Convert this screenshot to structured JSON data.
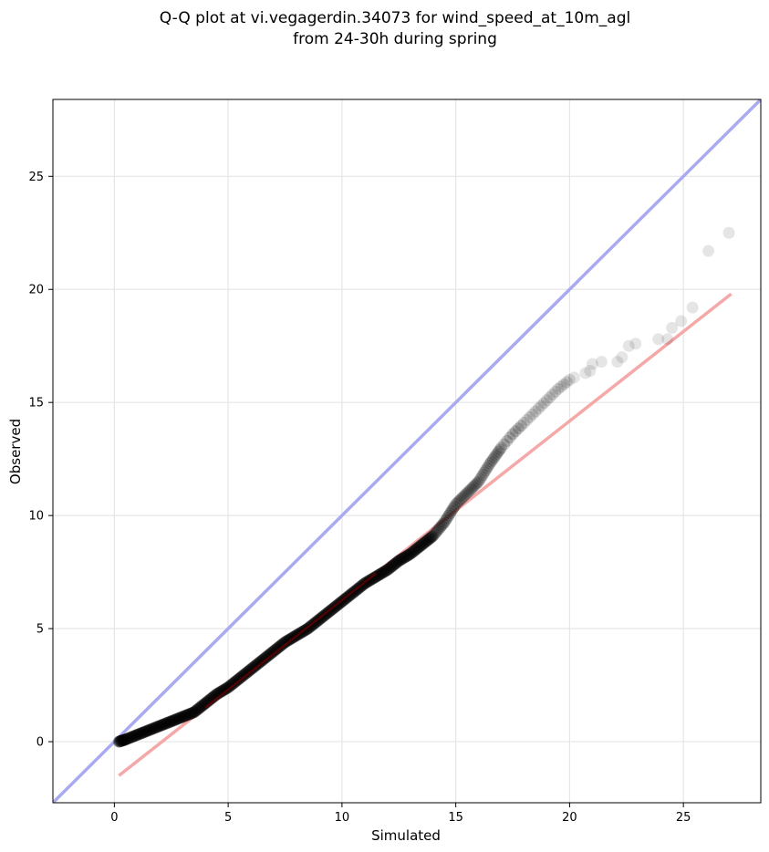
{
  "chart_data": {
    "type": "scatter",
    "title_line1": "Q-Q plot at vi.vegagerdin.34073 for wind_speed_at_10m_agl",
    "title_line2": "from 24-30h during spring",
    "xlabel": "Simulated",
    "ylabel": "Observed",
    "xlim": [
      -2.7,
      28.4
    ],
    "ylim": [
      -2.7,
      28.4
    ],
    "xticks": [
      0,
      5,
      10,
      15,
      20,
      25
    ],
    "yticks": [
      0,
      5,
      10,
      15,
      20,
      25
    ],
    "grid": true,
    "colors": {
      "points": "#000000",
      "identity_line": "#aaaaf0",
      "fit_line": "#f5a8a8",
      "dense_fit_line": "#8b0000"
    },
    "identity_line": {
      "from": [
        -2.7,
        -2.7
      ],
      "to": [
        28.4,
        28.4
      ]
    },
    "fit_line": {
      "from": [
        0.2,
        -1.5
      ],
      "to": [
        27.1,
        19.8
      ]
    },
    "quantile_curve": [
      [
        0.2,
        0.0
      ],
      [
        0.5,
        0.1
      ],
      [
        1.0,
        0.3
      ],
      [
        1.5,
        0.5
      ],
      [
        2.0,
        0.7
      ],
      [
        2.5,
        0.9
      ],
      [
        3.0,
        1.1
      ],
      [
        3.5,
        1.3
      ],
      [
        4.0,
        1.7
      ],
      [
        4.5,
        2.1
      ],
      [
        5.0,
        2.4
      ],
      [
        5.5,
        2.8
      ],
      [
        6.0,
        3.2
      ],
      [
        6.5,
        3.6
      ],
      [
        7.0,
        4.0
      ],
      [
        7.5,
        4.4
      ],
      [
        8.0,
        4.7
      ],
      [
        8.5,
        5.0
      ],
      [
        9.0,
        5.4
      ],
      [
        9.5,
        5.8
      ],
      [
        10.0,
        6.2
      ],
      [
        10.5,
        6.6
      ],
      [
        11.0,
        7.0
      ],
      [
        11.5,
        7.3
      ],
      [
        12.0,
        7.6
      ],
      [
        12.5,
        8.0
      ],
      [
        13.0,
        8.3
      ],
      [
        13.5,
        8.7
      ],
      [
        14.0,
        9.1
      ],
      [
        14.5,
        9.7
      ],
      [
        15.0,
        10.5
      ],
      [
        15.5,
        11.0
      ],
      [
        16.0,
        11.5
      ],
      [
        16.5,
        12.3
      ],
      [
        17.0,
        13.0
      ],
      [
        17.5,
        13.6
      ],
      [
        18.0,
        14.1
      ],
      [
        18.5,
        14.6
      ],
      [
        19.0,
        15.1
      ],
      [
        19.5,
        15.6
      ],
      [
        20.0,
        16.0
      ]
    ],
    "outlier_points": [
      [
        20.2,
        16.1
      ],
      [
        20.7,
        16.3
      ],
      [
        21.0,
        16.7
      ],
      [
        20.9,
        16.4
      ],
      [
        21.4,
        16.8
      ],
      [
        22.1,
        16.8
      ],
      [
        22.3,
        17.0
      ],
      [
        22.6,
        17.5
      ],
      [
        22.9,
        17.6
      ],
      [
        23.9,
        17.8
      ],
      [
        24.3,
        17.8
      ],
      [
        24.5,
        18.3
      ],
      [
        24.9,
        18.6
      ],
      [
        25.4,
        19.2
      ],
      [
        26.1,
        21.7
      ],
      [
        27.0,
        22.5
      ]
    ]
  }
}
